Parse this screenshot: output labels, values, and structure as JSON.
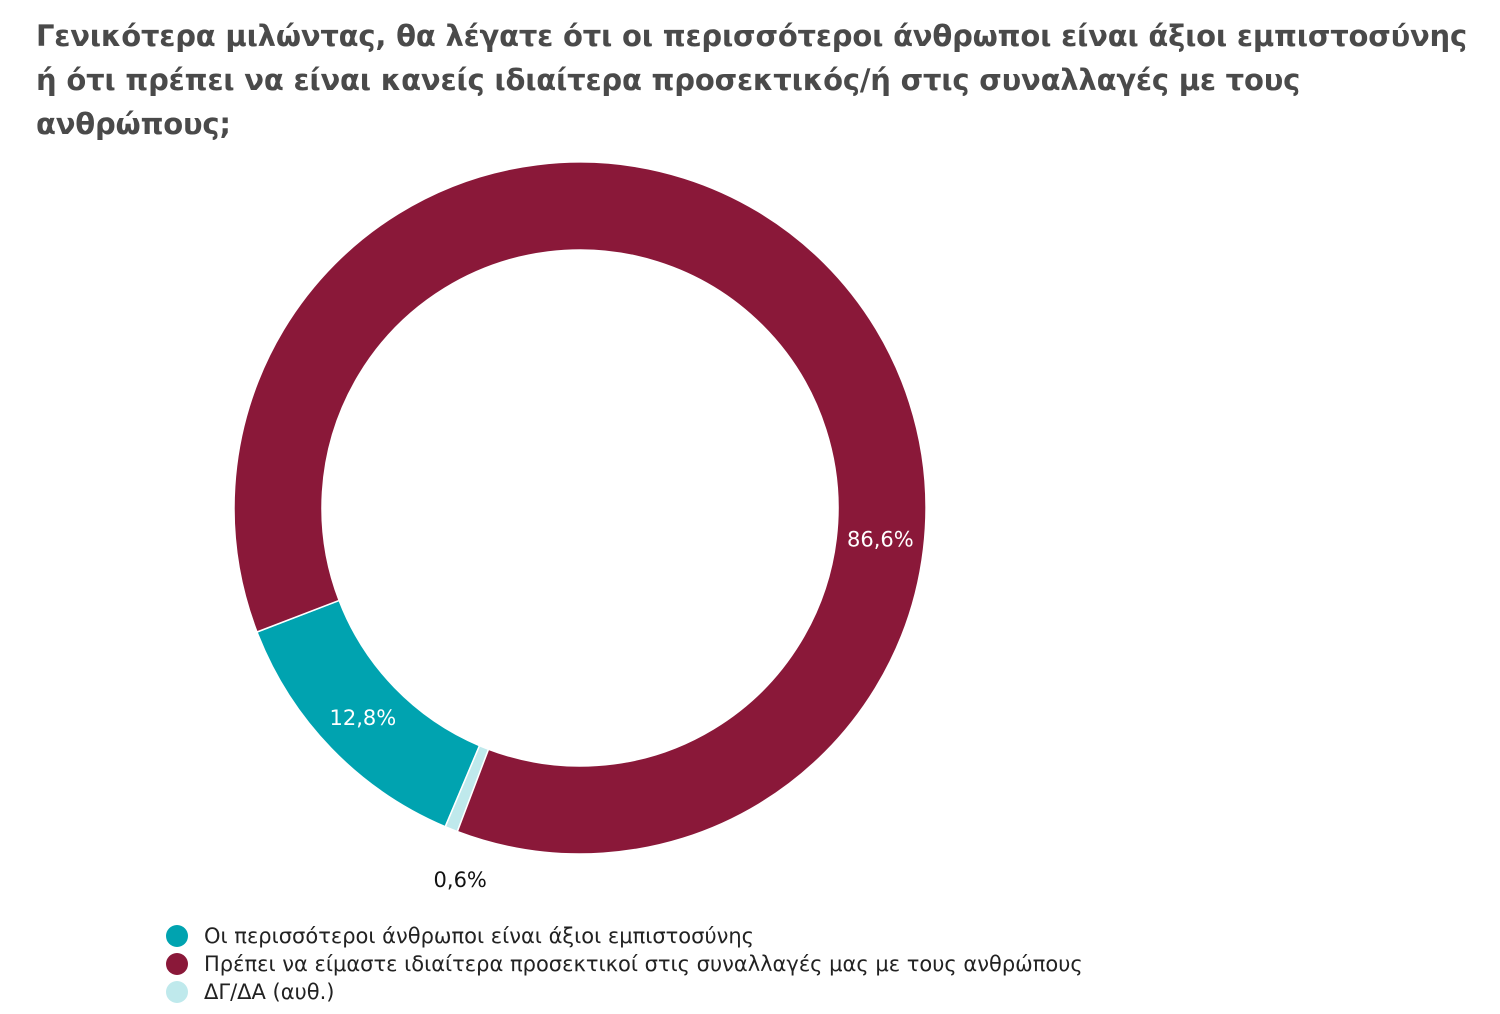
{
  "title": "Γενικότερα μιλώντας, θα λέγατε ότι οι περισσότεροι άνθρωποι είναι άξιοι εμπιστοσύνης ή ότι πρέπει να είναι κανείς ιδιαίτερα προσεκτικός/ή στις συναλλαγές με τους ανθρώπους;",
  "chart_data": {
    "type": "pie",
    "variant": "donut",
    "start_angle_deg": 249,
    "direction": "counterclockwise",
    "grid": false,
    "legend_position": "bottom-left",
    "slices": [
      {
        "label": "Οι περισσότεροι άνθρωποι είναι άξιοι εμπιστοσύνης",
        "value": 12.8,
        "value_label": "12,8%",
        "color": "#00a3b0",
        "label_placement": "inside",
        "label_color": "#ffffff"
      },
      {
        "label": "ΔΓ/ΔΑ (αυθ.)",
        "value": 0.6,
        "value_label": "0,6%",
        "color": "#bfe9ec",
        "label_placement": "outside",
        "label_color": "#111111"
      },
      {
        "label": "Πρέπει να είμαστε ιδιαίτερα προσεκτικοί στις συναλλαγές μας με τους ανθρώπους",
        "value": 86.6,
        "value_label": "86,6%",
        "color": "#8a1839",
        "label_placement": "inside",
        "label_color": "#ffffff"
      }
    ]
  },
  "legend": [
    {
      "label": "Οι περισσότεροι άνθρωποι είναι άξιοι εμπιστοσύνης",
      "color": "#00a3b0"
    },
    {
      "label": "Πρέπει να είμαστε ιδιαίτερα προσεκτικοί στις συναλλαγές μας με τους ανθρώπους",
      "color": "#8a1839"
    },
    {
      "label": "ΔΓ/ΔΑ (αυθ.)",
      "color": "#bfe9ec"
    }
  ]
}
